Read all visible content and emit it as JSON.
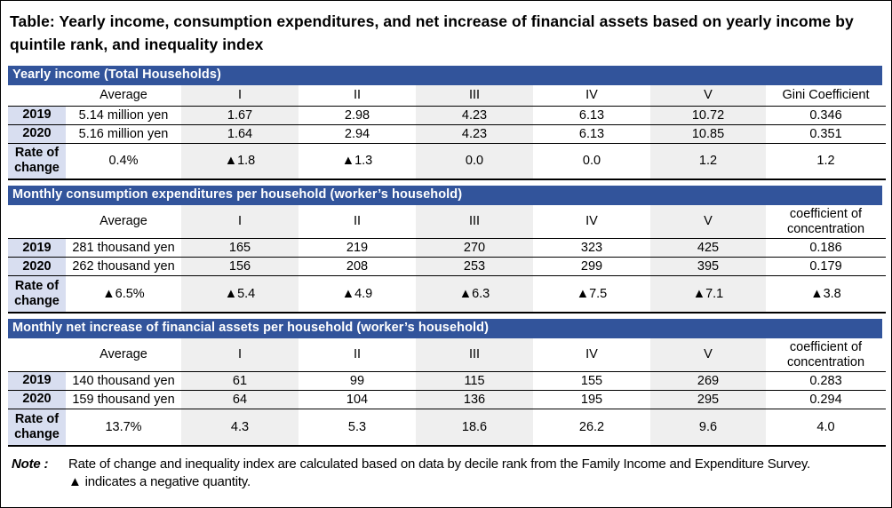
{
  "page": {
    "title": "Table: Yearly income, consumption expenditures, and net increase of financial assets based on yearly income by quintile rank, and inequality index",
    "note_label": "Note :",
    "note_line1": "Rate of change and inequality index are calculated based on data by decile rank from the Family Income and Expenditure Survey.",
    "note_line2": "▲ indicates a negative quantity."
  },
  "colors": {
    "section_header_bg": "#32549B",
    "section_header_text": "#FFFFFF",
    "row_label_bg": "#D8DEF0",
    "stripe_bg": "#EFEFEF",
    "rule_color": "#000000"
  },
  "chart_data": [
    {
      "type": "table",
      "title": "Yearly income (Total Households)",
      "columns": [
        "",
        "Average",
        "I",
        "II",
        "III",
        "IV",
        "V",
        "Gini Coefficient"
      ],
      "striped_columns": [
        2,
        4,
        6
      ],
      "rows": [
        {
          "label": "2019",
          "values": [
            "5.14 million yen",
            "1.67",
            "2.98",
            "4.23",
            "6.13",
            "10.72",
            "0.346"
          ]
        },
        {
          "label": "2020",
          "values": [
            "5.16 million yen",
            "1.64",
            "2.94",
            "4.23",
            "6.13",
            "10.85",
            "0.351"
          ]
        },
        {
          "label": "Rate of change",
          "values": [
            "0.4%",
            "▲1.8",
            "▲1.3",
            "0.0",
            "0.0",
            "1.2",
            "1.2"
          ]
        }
      ]
    },
    {
      "type": "table",
      "title": "Monthly consumption expenditures per household (worker’s household)",
      "columns": [
        "",
        "Average",
        "I",
        "II",
        "III",
        "IV",
        "V",
        "coefficient of concentration"
      ],
      "striped_columns": [
        2,
        4,
        6
      ],
      "rows": [
        {
          "label": "2019",
          "values": [
            "281 thousand yen",
            "165",
            "219",
            "270",
            "323",
            "425",
            "0.186"
          ]
        },
        {
          "label": "2020",
          "values": [
            "262 thousand yen",
            "156",
            "208",
            "253",
            "299",
            "395",
            "0.179"
          ]
        },
        {
          "label": "Rate of change",
          "values": [
            "▲6.5%",
            "▲5.4",
            "▲4.9",
            "▲6.3",
            "▲7.5",
            "▲7.1",
            "▲3.8"
          ]
        }
      ]
    },
    {
      "type": "table",
      "title": "Monthly net increase of financial assets per household (worker’s household)",
      "columns": [
        "",
        "Average",
        "I",
        "II",
        "III",
        "IV",
        "V",
        "coefficient of concentration"
      ],
      "striped_columns": [
        2,
        4,
        6
      ],
      "rows": [
        {
          "label": "2019",
          "values": [
            "140 thousand yen",
            "61",
            "99",
            "115",
            "155",
            "269",
            "0.283"
          ]
        },
        {
          "label": "2020",
          "values": [
            "159 thousand yen",
            "64",
            "104",
            "136",
            "195",
            "295",
            "0.294"
          ]
        },
        {
          "label": "Rate of change",
          "values": [
            "13.7%",
            "4.3",
            "5.3",
            "18.6",
            "26.2",
            "9.6",
            "4.0"
          ]
        }
      ]
    }
  ]
}
